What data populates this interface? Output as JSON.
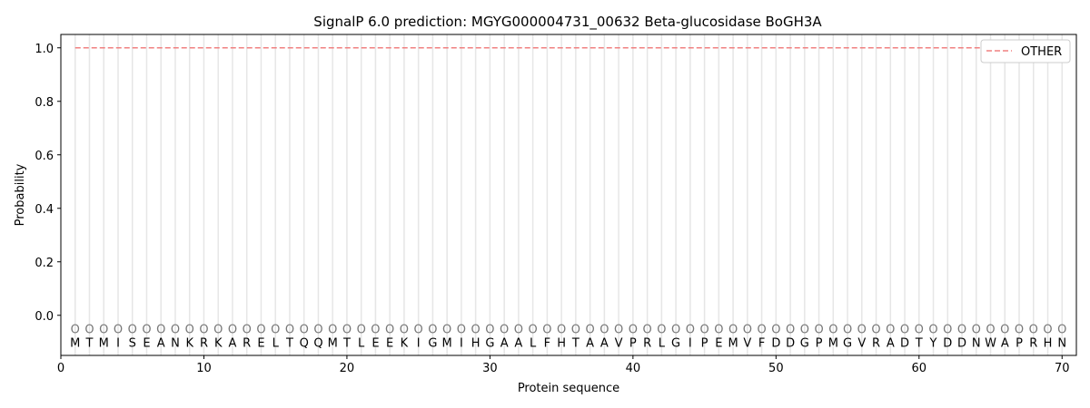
{
  "chart_data": {
    "type": "line",
    "title": "SignalP 6.0 prediction: MGYG000004731_00632 Beta-glucosidase BoGH3A",
    "xlabel": "Protein sequence",
    "ylabel": "Probability",
    "xlim": [
      0,
      71
    ],
    "ylim": [
      -0.15,
      1.05
    ],
    "xticks": [
      0,
      10,
      20,
      30,
      40,
      50,
      60,
      70
    ],
    "yticks": [
      0.0,
      0.2,
      0.4,
      0.6,
      0.8,
      1.0
    ],
    "ytick_labels": [
      "0.0",
      "0.2",
      "0.4",
      "0.6",
      "0.8",
      "1.0"
    ],
    "grid": "vertical lines at each residue",
    "legend_position": "top-right",
    "sequence": [
      "M",
      "T",
      "M",
      "I",
      "S",
      "E",
      "A",
      "N",
      "K",
      "R",
      "K",
      "A",
      "R",
      "E",
      "L",
      "T",
      "Q",
      "Q",
      "M",
      "T",
      "L",
      "E",
      "E",
      "K",
      "I",
      "G",
      "M",
      "I",
      "H",
      "G",
      "A",
      "A",
      "L",
      "F",
      "H",
      "T",
      "A",
      "A",
      "V",
      "P",
      "R",
      "L",
      "G",
      "I",
      "P",
      "E",
      "M",
      "V",
      "F",
      "D",
      "D",
      "G",
      "P",
      "M",
      "G",
      "V",
      "R",
      "A",
      "D",
      "T",
      "Y",
      "D",
      "D",
      "N",
      "W",
      "A",
      "P",
      "R",
      "H",
      "N"
    ],
    "predicted_labels": "OOOOOOOOOOOOOOOOOOOOOOOOOOOOOOOOOOOOOOOOOOOOOOOOOOOOOOOOOOOOOOOOOOOOOO",
    "series": [
      {
        "name": "OTHER",
        "color": "#f08080",
        "style": "dashed",
        "x_range": [
          1,
          70
        ],
        "value": 1.0
      }
    ]
  }
}
